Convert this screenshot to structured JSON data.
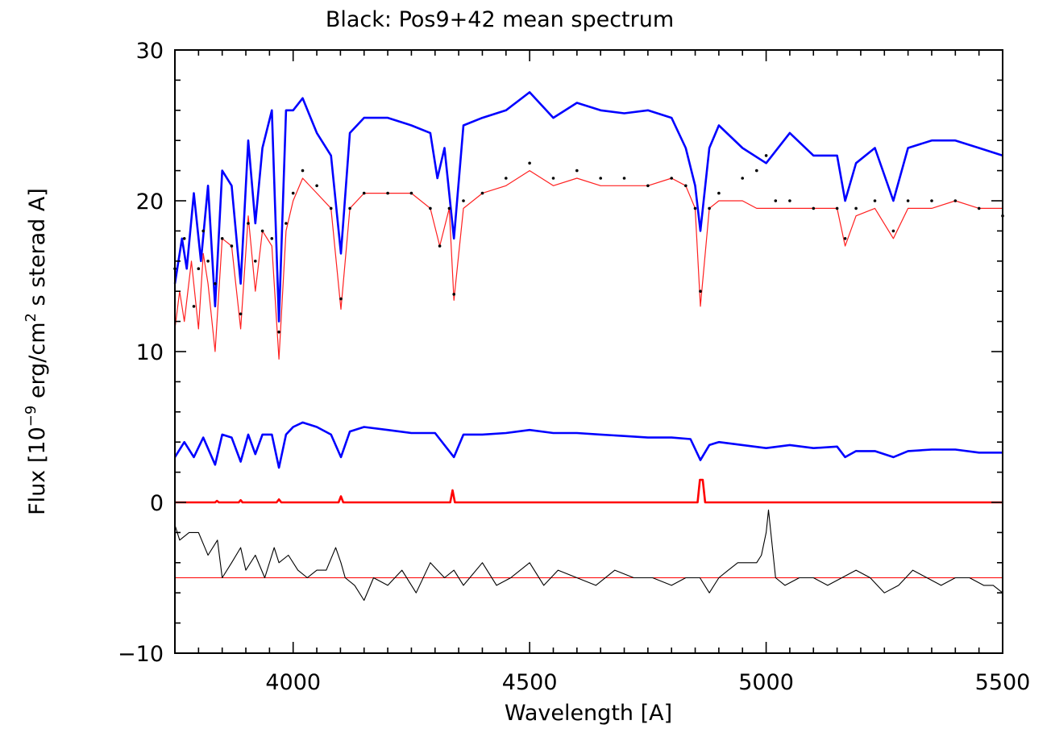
{
  "chart_data": {
    "type": "line",
    "title": "Black: Pos9+42 mean spectrum",
    "xlabel": "Wavelength [A]",
    "ylabel": {
      "prefix": "Flux [10",
      "exp1": "−9",
      "mid": " erg/cm",
      "exp2": "2",
      "suffix": " s sterad A]"
    },
    "xlim": [
      3750,
      5500
    ],
    "ylim": [
      -10,
      30
    ],
    "x_ticks": [
      4000,
      4500,
      5000,
      5500
    ],
    "x_tick_labels": [
      "4000",
      "4500",
      "5000",
      "5500"
    ],
    "y_ticks": [
      -10,
      0,
      10,
      20,
      30
    ],
    "y_tick_labels": [
      "−10",
      "0",
      "10",
      "20",
      "30"
    ],
    "x_minor_step": 50,
    "y_minor_step": 2,
    "grid": false,
    "legend": "none",
    "colors": {
      "observed": "#000000",
      "fit": "#ff2020",
      "upper_component": "#0000ff",
      "lower_component": "#0000ff",
      "emission_component": "#ff0000",
      "residual": "#000000",
      "residual_zero": "#ff0000"
    },
    "series": [
      {
        "role": "observed",
        "style": "dots",
        "x": [
          3750,
          3770,
          3790,
          3800,
          3810,
          3820,
          3835,
          3850,
          3870,
          3889,
          3905,
          3920,
          3935,
          3955,
          3970,
          3985,
          4000,
          4020,
          4050,
          4080,
          4101,
          4120,
          4150,
          4200,
          4250,
          4290,
          4310,
          4330,
          4340,
          4360,
          4400,
          4450,
          4500,
          4550,
          4600,
          4650,
          4700,
          4750,
          4800,
          4830,
          4850,
          4861,
          4880,
          4900,
          4950,
          4980,
          5000,
          5020,
          5050,
          5100,
          5150,
          5167,
          5190,
          5230,
          5269,
          5300,
          5350,
          5400,
          5450,
          5500
        ],
        "y": [
          15.5,
          17.5,
          13,
          15.5,
          18,
          16,
          14.5,
          17.5,
          17,
          12.5,
          18.5,
          16,
          18,
          17.5,
          11.3,
          18.5,
          20.5,
          22,
          21,
          19.5,
          13.5,
          19.5,
          20.5,
          20.5,
          20.5,
          19.5,
          17,
          19.5,
          13.8,
          20,
          20.5,
          21.5,
          22.5,
          21.5,
          22,
          21.5,
          21.5,
          21,
          21.5,
          21,
          19.5,
          14,
          19.5,
          20.5,
          21.5,
          22,
          23,
          20,
          20,
          19.5,
          19.5,
          17.5,
          19.5,
          20,
          18,
          20,
          20,
          20,
          19.5,
          19
        ]
      },
      {
        "role": "fit",
        "style": "line",
        "x": [
          3750,
          3760,
          3770,
          3785,
          3800,
          3810,
          3820,
          3835,
          3850,
          3870,
          3889,
          3905,
          3920,
          3935,
          3955,
          3970,
          3985,
          4000,
          4020,
          4050,
          4080,
          4101,
          4120,
          4150,
          4200,
          4250,
          4290,
          4310,
          4330,
          4340,
          4360,
          4400,
          4450,
          4500,
          4550,
          4600,
          4650,
          4700,
          4750,
          4800,
          4830,
          4850,
          4861,
          4880,
          4900,
          4950,
          4980,
          5000,
          5050,
          5100,
          5150,
          5167,
          5190,
          5230,
          5269,
          5300,
          5350,
          5400,
          5450,
          5500
        ],
        "y": [
          11.5,
          14,
          12,
          16,
          11.5,
          16.5,
          14.5,
          10,
          17.5,
          17,
          11.5,
          19,
          14,
          18,
          17,
          9.5,
          18,
          20,
          21.5,
          20.5,
          19.5,
          12.8,
          19.5,
          20.5,
          20.5,
          20.5,
          19.5,
          17,
          19.5,
          13.4,
          19.5,
          20.5,
          21,
          22,
          21,
          21.5,
          21,
          21,
          21,
          21.5,
          21,
          19.5,
          13,
          19.5,
          20,
          20,
          19.5,
          19.5,
          19.5,
          19.5,
          19.5,
          17,
          19,
          19.5,
          17.5,
          19.5,
          19.5,
          20,
          19.5,
          19.5
        ]
      },
      {
        "role": "upper_component",
        "style": "thick-line",
        "x": [
          3750,
          3765,
          3775,
          3790,
          3805,
          3820,
          3835,
          3850,
          3870,
          3889,
          3905,
          3920,
          3935,
          3955,
          3970,
          3985,
          4000,
          4020,
          4050,
          4080,
          4101,
          4120,
          4150,
          4200,
          4250,
          4290,
          4305,
          4320,
          4340,
          4360,
          4400,
          4450,
          4500,
          4550,
          4600,
          4650,
          4700,
          4750,
          4800,
          4830,
          4850,
          4861,
          4880,
          4900,
          4950,
          5000,
          5050,
          5100,
          5150,
          5167,
          5190,
          5230,
          5269,
          5300,
          5350,
          5400,
          5450,
          5500
        ],
        "y": [
          14.5,
          17.5,
          15.5,
          20.5,
          16,
          21,
          13,
          22,
          21,
          14.5,
          24,
          18.5,
          23.5,
          26,
          12,
          26,
          26,
          26.8,
          24.5,
          23,
          16.5,
          24.5,
          25.5,
          25.5,
          25,
          24.5,
          21.5,
          23.5,
          17.5,
          25,
          25.5,
          26,
          27.2,
          25.5,
          26.5,
          26,
          25.8,
          26,
          25.5,
          23.5,
          21,
          18,
          23.5,
          25,
          23.5,
          22.5,
          24.5,
          23,
          23,
          20,
          22.5,
          23.5,
          20,
          23.5,
          24,
          24,
          23.5,
          23
        ]
      },
      {
        "role": "lower_component",
        "style": "thick-line",
        "x": [
          3750,
          3770,
          3790,
          3810,
          3835,
          3850,
          3870,
          3889,
          3905,
          3920,
          3935,
          3955,
          3970,
          3985,
          4000,
          4020,
          4050,
          4080,
          4101,
          4120,
          4150,
          4200,
          4250,
          4300,
          4340,
          4360,
          4400,
          4450,
          4500,
          4550,
          4600,
          4650,
          4700,
          4750,
          4800,
          4840,
          4861,
          4880,
          4900,
          4950,
          5000,
          5050,
          5100,
          5150,
          5167,
          5190,
          5230,
          5269,
          5300,
          5350,
          5400,
          5450,
          5500
        ],
        "y": [
          3,
          4,
          3,
          4.3,
          2.5,
          4.5,
          4.3,
          2.7,
          4.5,
          3.2,
          4.5,
          4.5,
          2.3,
          4.5,
          5,
          5.3,
          5,
          4.5,
          3,
          4.7,
          5,
          4.8,
          4.6,
          4.6,
          3,
          4.5,
          4.5,
          4.6,
          4.8,
          4.6,
          4.6,
          4.5,
          4.4,
          4.3,
          4.3,
          4.2,
          2.8,
          3.8,
          4,
          3.8,
          3.6,
          3.8,
          3.6,
          3.7,
          3,
          3.4,
          3.4,
          3,
          3.4,
          3.5,
          3.5,
          3.3,
          3.3
        ]
      },
      {
        "role": "emission_component",
        "style": "thick-line",
        "x": [
          3750,
          3835,
          3839,
          3843,
          3885,
          3889,
          3893,
          3965,
          3970,
          3975,
          4096,
          4101,
          4106,
          4332,
          4337,
          4342,
          4855,
          4860,
          4866,
          4871,
          5500
        ],
        "y": [
          0,
          0,
          0.1,
          0,
          0,
          0.15,
          0,
          0,
          0.2,
          0,
          0,
          0.4,
          0,
          0,
          0.8,
          0,
          0,
          1.5,
          1.5,
          0,
          0
        ]
      },
      {
        "role": "residual",
        "style": "thin-line",
        "x": [
          3750,
          3760,
          3780,
          3800,
          3820,
          3840,
          3850,
          3870,
          3889,
          3900,
          3920,
          3940,
          3960,
          3970,
          3990,
          4010,
          4030,
          4050,
          4070,
          4090,
          4101,
          4110,
          4130,
          4150,
          4170,
          4200,
          4230,
          4260,
          4290,
          4320,
          4340,
          4360,
          4400,
          4430,
          4460,
          4500,
          4530,
          4560,
          4600,
          4640,
          4680,
          4720,
          4760,
          4800,
          4830,
          4860,
          4880,
          4900,
          4920,
          4940,
          4960,
          4980,
          4990,
          5000,
          5005,
          5010,
          5020,
          5040,
          5070,
          5100,
          5130,
          5160,
          5190,
          5220,
          5250,
          5280,
          5310,
          5340,
          5370,
          5400,
          5430,
          5460,
          5480,
          5500
        ],
        "y": [
          -1.5,
          -2.5,
          -2,
          -2,
          -3.5,
          -2.5,
          -5,
          -4,
          -3,
          -4.5,
          -3.5,
          -5,
          -3,
          -4,
          -3.5,
          -4.5,
          -5,
          -4.5,
          -4.5,
          -3,
          -4,
          -5,
          -5.5,
          -6.5,
          -5,
          -5.5,
          -4.5,
          -6,
          -4,
          -5,
          -4.5,
          -5.5,
          -4,
          -5.5,
          -5,
          -4,
          -5.5,
          -4.5,
          -5,
          -5.5,
          -4.5,
          -5,
          -5,
          -5.5,
          -5,
          -5,
          -6,
          -5,
          -4.5,
          -4,
          -4,
          -4,
          -3.5,
          -2,
          -0.5,
          -2,
          -5,
          -5.5,
          -5,
          -5,
          -5.5,
          -5,
          -4.5,
          -5,
          -6,
          -5.5,
          -4.5,
          -5,
          -5.5,
          -5,
          -5,
          -5.5,
          -5.5,
          -6
        ]
      },
      {
        "role": "residual_zero",
        "style": "thin-line",
        "x": [
          3750,
          5500
        ],
        "y": [
          -5,
          -5
        ]
      }
    ]
  }
}
